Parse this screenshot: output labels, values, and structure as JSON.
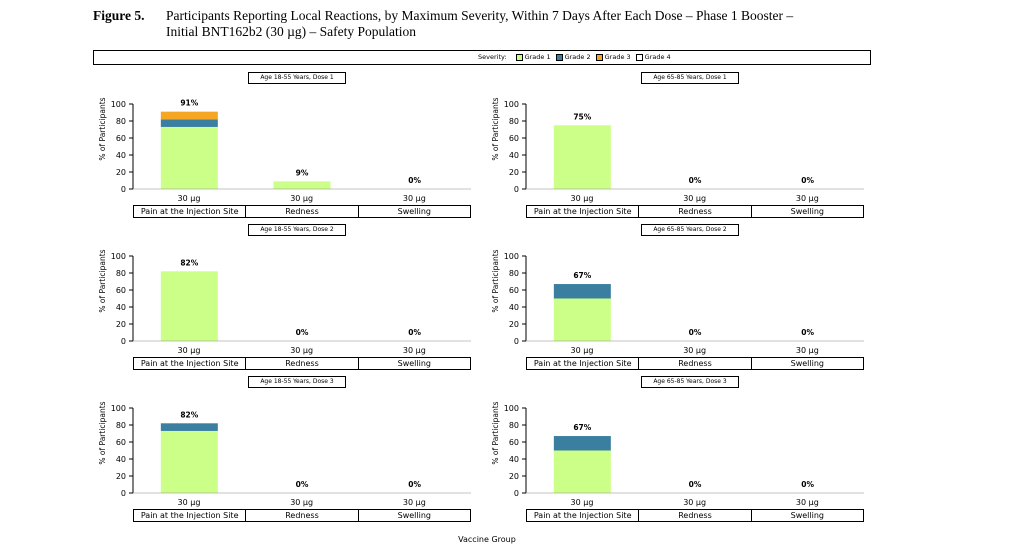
{
  "figure": {
    "label": "Figure 5.",
    "title_line1": "Participants Reporting Local Reactions, by Maximum Severity, Within 7 Days After Each Dose – Phase 1 Booster –",
    "title_line2": "Initial BNT162b2 (30 µg) – Safety Population"
  },
  "legend": {
    "title": "Severity:",
    "items": [
      {
        "label": "Grade 1",
        "color": "#ccff88"
      },
      {
        "label": "Grade 2",
        "color": "#3a7fa0"
      },
      {
        "label": "Grade 3",
        "color": "#f5a623"
      },
      {
        "label": "Grade 4",
        "color": "#ffffff"
      }
    ]
  },
  "y_axis_label": "% of Participants",
  "y_ticks": [
    "0",
    "20",
    "40",
    "60",
    "80",
    "100"
  ],
  "dose_label": "30 µg",
  "categories": [
    "Pain at the Injection Site",
    "Redness",
    "Swelling"
  ],
  "x_axis_title": "Vaccine Group",
  "chart_data": [
    {
      "type": "bar",
      "title": "Age 18-55 Years, Dose 1",
      "categories": [
        "Pain at the Injection Site",
        "Redness",
        "Swelling"
      ],
      "ylim": [
        0,
        100
      ],
      "ylabel": "% of Participants",
      "series": [
        {
          "name": "Grade 1",
          "values": [
            73,
            9,
            0
          ]
        },
        {
          "name": "Grade 2",
          "values": [
            9,
            0,
            0
          ]
        },
        {
          "name": "Grade 3",
          "values": [
            9,
            0,
            0
          ]
        },
        {
          "name": "Grade 4",
          "values": [
            0,
            0,
            0
          ]
        }
      ],
      "totals": [
        "91%",
        "9%",
        "0%"
      ]
    },
    {
      "type": "bar",
      "title": "Age 65-85  Years, Dose 1",
      "categories": [
        "Pain at the Injection Site",
        "Redness",
        "Swelling"
      ],
      "ylim": [
        0,
        100
      ],
      "ylabel": "% of Participants",
      "series": [
        {
          "name": "Grade 1",
          "values": [
            75,
            0,
            0
          ]
        },
        {
          "name": "Grade 2",
          "values": [
            0,
            0,
            0
          ]
        },
        {
          "name": "Grade 3",
          "values": [
            0,
            0,
            0
          ]
        },
        {
          "name": "Grade 4",
          "values": [
            0,
            0,
            0
          ]
        }
      ],
      "totals": [
        "75%",
        "0%",
        "0%"
      ]
    },
    {
      "type": "bar",
      "title": "Age 18-55 Years, Dose 2",
      "categories": [
        "Pain at the Injection Site",
        "Redness",
        "Swelling"
      ],
      "ylim": [
        0,
        100
      ],
      "ylabel": "% of Participants",
      "series": [
        {
          "name": "Grade 1",
          "values": [
            82,
            0,
            0
          ]
        },
        {
          "name": "Grade 2",
          "values": [
            0,
            0,
            0
          ]
        },
        {
          "name": "Grade 3",
          "values": [
            0,
            0,
            0
          ]
        },
        {
          "name": "Grade 4",
          "values": [
            0,
            0,
            0
          ]
        }
      ],
      "totals": [
        "82%",
        "0%",
        "0%"
      ]
    },
    {
      "type": "bar",
      "title": "Age 65-85  Years, Dose 2",
      "categories": [
        "Pain at the Injection Site",
        "Redness",
        "Swelling"
      ],
      "ylim": [
        0,
        100
      ],
      "ylabel": "% of Participants",
      "series": [
        {
          "name": "Grade 1",
          "values": [
            50,
            0,
            0
          ]
        },
        {
          "name": "Grade 2",
          "values": [
            17,
            0,
            0
          ]
        },
        {
          "name": "Grade 3",
          "values": [
            0,
            0,
            0
          ]
        },
        {
          "name": "Grade 4",
          "values": [
            0,
            0,
            0
          ]
        }
      ],
      "totals": [
        "67%",
        "0%",
        "0%"
      ]
    },
    {
      "type": "bar",
      "title": "Age 18-55 Years, Dose 3",
      "categories": [
        "Pain at the Injection Site",
        "Redness",
        "Swelling"
      ],
      "ylim": [
        0,
        100
      ],
      "ylabel": "% of Participants",
      "series": [
        {
          "name": "Grade 1",
          "values": [
            73,
            0,
            0
          ]
        },
        {
          "name": "Grade 2",
          "values": [
            9,
            0,
            0
          ]
        },
        {
          "name": "Grade 3",
          "values": [
            0,
            0,
            0
          ]
        },
        {
          "name": "Grade 4",
          "values": [
            0,
            0,
            0
          ]
        }
      ],
      "totals": [
        "82%",
        "0%",
        "0%"
      ]
    },
    {
      "type": "bar",
      "title": "Age 65-85  Years, Dose 3",
      "categories": [
        "Pain at the Injection Site",
        "Redness",
        "Swelling"
      ],
      "ylim": [
        0,
        100
      ],
      "ylabel": "% of Participants",
      "series": [
        {
          "name": "Grade 1",
          "values": [
            50,
            0,
            0
          ]
        },
        {
          "name": "Grade 2",
          "values": [
            17,
            0,
            0
          ]
        },
        {
          "name": "Grade 3",
          "values": [
            0,
            0,
            0
          ]
        },
        {
          "name": "Grade 4",
          "values": [
            0,
            0,
            0
          ]
        }
      ],
      "totals": [
        "67%",
        "0%",
        "0%"
      ]
    }
  ]
}
